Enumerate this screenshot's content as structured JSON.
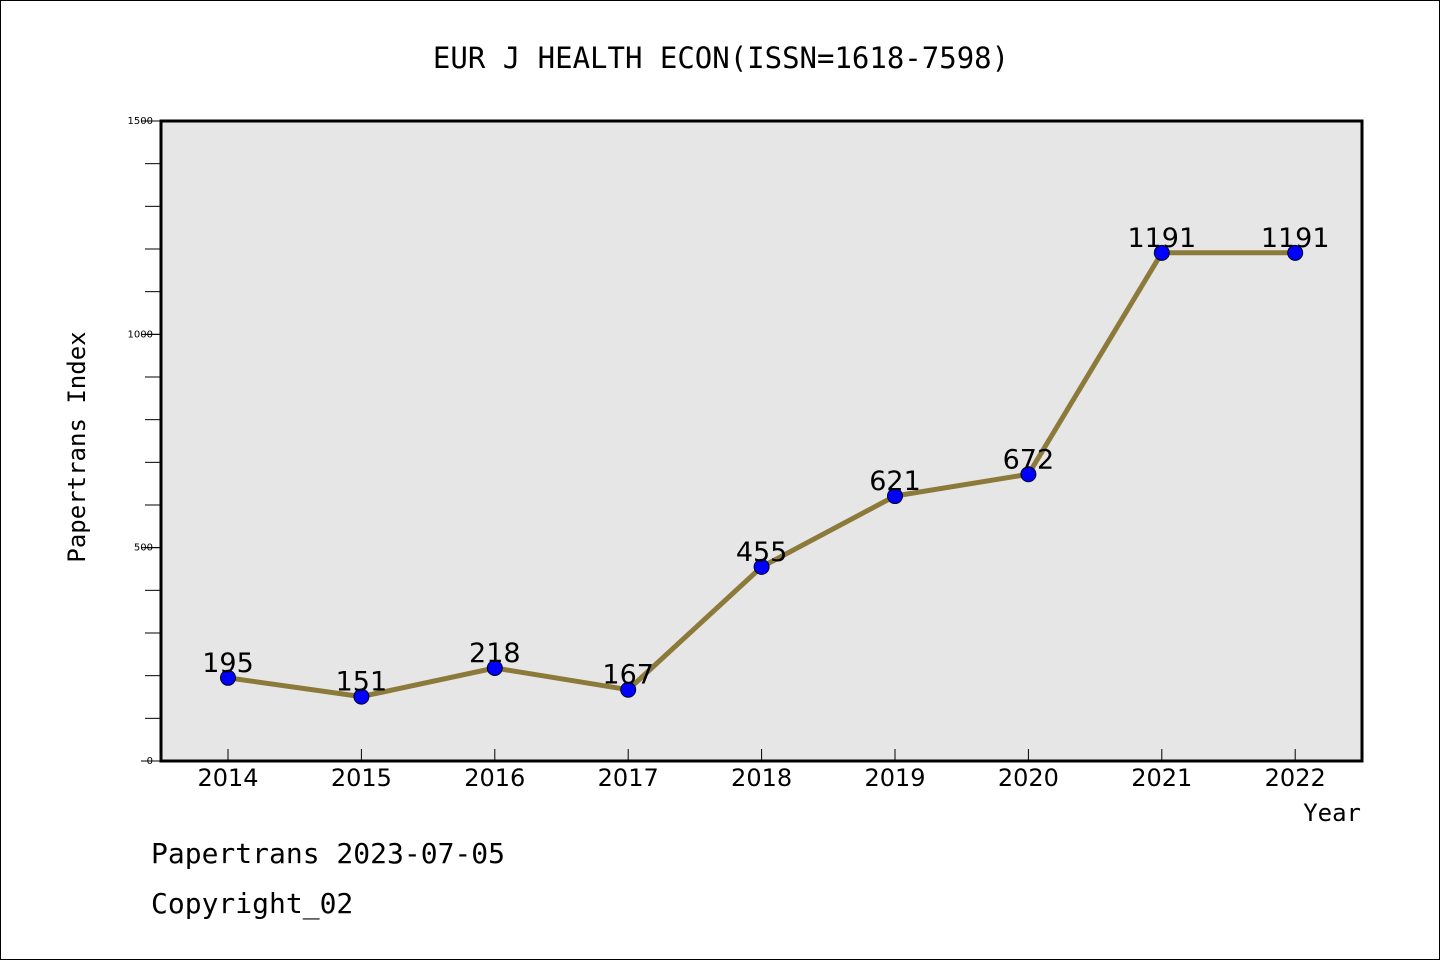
{
  "chart_data": {
    "type": "line",
    "title": "EUR J HEALTH ECON(ISSN=1618-7598)",
    "xlabel": "Year",
    "ylabel": "Papertrans Index",
    "categories": [
      "2014",
      "2015",
      "2016",
      "2017",
      "2018",
      "2019",
      "2020",
      "2021",
      "2022"
    ],
    "values": [
      195,
      151,
      218,
      167,
      455,
      621,
      672,
      1191,
      1191
    ],
    "data_labels": [
      "195",
      "151",
      "218",
      "167",
      "455",
      "621",
      "672",
      "1191",
      "1191"
    ],
    "ylim": [
      0,
      1500
    ],
    "yticks": [
      "0",
      "500",
      "1000",
      "1500"
    ],
    "grid": false,
    "line_color": "#8c7a3a",
    "marker_color": "#0000ff",
    "plot_background": "#e6e6e6"
  },
  "footer": {
    "date_line": "Papertrans 2023-07-05",
    "copyright_line": "Copyright_02"
  }
}
